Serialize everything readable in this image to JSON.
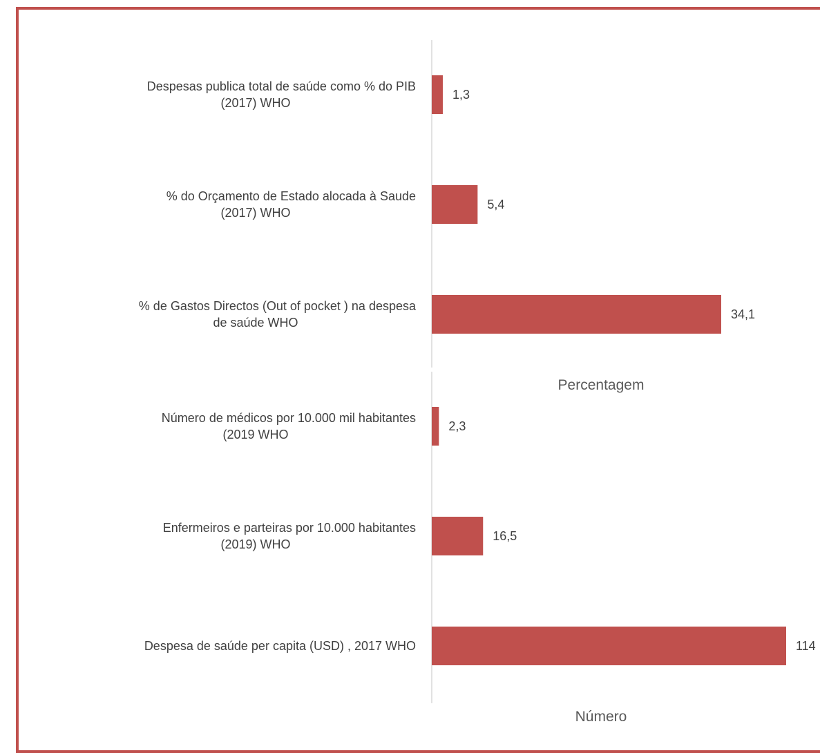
{
  "colors": {
    "frame": "#c0504d",
    "bar": "#c0504d",
    "axis": "#d9d9d9",
    "text": "#404040"
  },
  "chart_data": [
    {
      "type": "bar",
      "orientation": "horizontal",
      "title": "Percentagem",
      "categories": [
        [
          "Despesas publica total de saúde como % do PIB",
          "(2017) WHO"
        ],
        [
          "% do Orçamento de Estado alocada à Saude",
          "(2017) WHO"
        ],
        [
          "% de Gastos Directos (Out of pocket ) na despesa",
          "de saúde WHO"
        ]
      ],
      "values": [
        1.3,
        5.4,
        34.1
      ],
      "data_labels": [
        "1,3",
        "5,4",
        "34,1"
      ],
      "xlim": [
        0,
        35
      ],
      "grid": false
    },
    {
      "type": "bar",
      "orientation": "horizontal",
      "title": "Número",
      "categories": [
        [
          "Número de médicos por 10.000 mil habitantes",
          "(2019 WHO"
        ],
        [
          "Enfermeiros e parteiras por 10.000 habitantes",
          "(2019) WHO"
        ],
        [
          "Despesa de saúde per capita (USD) , 2017 WHO"
        ]
      ],
      "values": [
        2.3,
        16.5,
        114
      ],
      "data_labels": [
        "2,3",
        "16,5",
        "114"
      ],
      "xlim": [
        0,
        115
      ],
      "grid": false
    }
  ]
}
